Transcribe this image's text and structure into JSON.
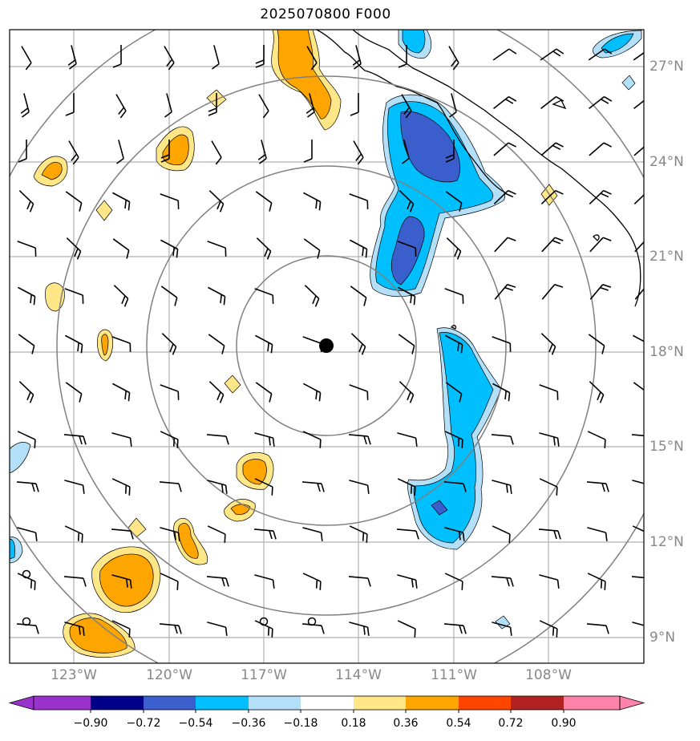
{
  "title": "2025070800 F000",
  "lat_labels": [
    "27°N",
    "24°N",
    "21°N",
    "18°N",
    "15°N",
    "12°N",
    "9°N"
  ],
  "lon_labels": [
    "123°W",
    "120°W",
    "117°W",
    "114°W",
    "111°W",
    "108°W"
  ],
  "colorbar": {
    "ticks": [
      "−0.90",
      "−0.72",
      "−0.54",
      "−0.36",
      "−0.18",
      "0.18",
      "0.36",
      "0.54",
      "0.72",
      "0.90"
    ],
    "colors": [
      "#9932cc",
      "#00008b",
      "#3a5fcd",
      "#00bfff",
      "#b3e0f8",
      "#ffffff",
      "#ffe787",
      "#ffa500",
      "#ff4500",
      "#b22222",
      "#ff82ab"
    ]
  },
  "center_marker": {
    "lat": 18.2,
    "lon": -115.0
  }
}
